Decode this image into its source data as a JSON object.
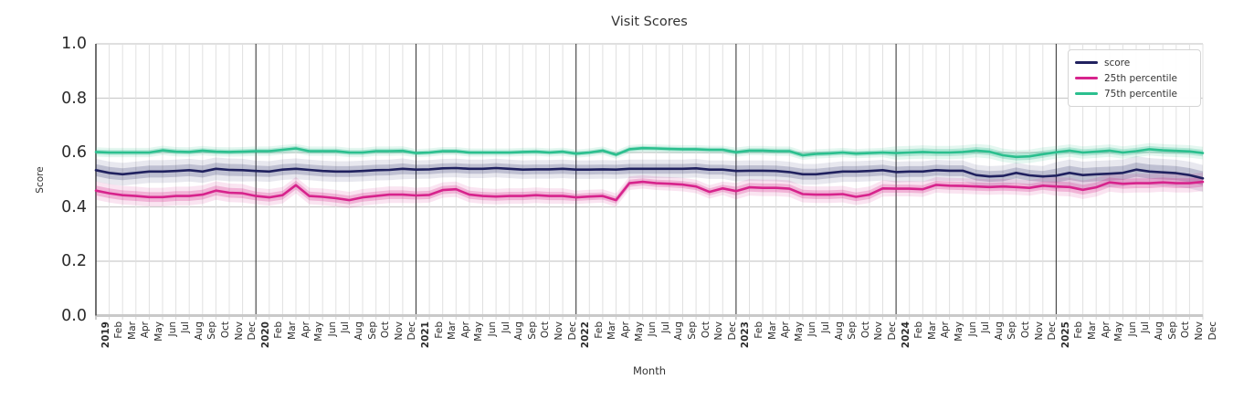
{
  "title": "Visit Scores",
  "xlabel": "Month",
  "ylabel": "Score",
  "yticks": [
    "0.0",
    "0.2",
    "0.4",
    "0.6",
    "0.8",
    "1.0"
  ],
  "colors": {
    "score_line": "#20215f",
    "p25_line": "#d7238c",
    "p75_line": "#2bbf8e",
    "grid_minor": "#e0e0e0",
    "grid_major_year": "#3c3c3c",
    "grid_horizontal": "#cccccc",
    "bottom_spine": "#c9c9c9",
    "left_spine": "#3c3c3c",
    "text": "#2b2b2b"
  },
  "legend": {
    "items": [
      {
        "label": "score",
        "color": "#20215f"
      },
      {
        "label": "25th percentile",
        "color": "#d7238c"
      },
      {
        "label": "75th percentile",
        "color": "#2bbf8e"
      }
    ]
  },
  "chart_data": {
    "type": "line",
    "title": "Visit Scores",
    "xlabel": "Month",
    "ylabel": "Score",
    "ylim": [
      0,
      1
    ],
    "grid": "both",
    "legend_position": "upper right",
    "categories": [
      "2019",
      "Feb",
      "Mar",
      "Apr",
      "May",
      "Jun",
      "Jul",
      "Aug",
      "Sep",
      "Oct",
      "Nov",
      "Dec",
      "2020",
      "Feb",
      "Mar",
      "Apr",
      "May",
      "Jun",
      "Jul",
      "Aug",
      "Sep",
      "Oct",
      "Nov",
      "Dec",
      "2021",
      "Feb",
      "Mar",
      "Apr",
      "May",
      "Jun",
      "Jul",
      "Aug",
      "Sep",
      "Oct",
      "Nov",
      "Dec",
      "2022",
      "Feb",
      "Mar",
      "Apr",
      "May",
      "Jun",
      "Jul",
      "Aug",
      "Sep",
      "Oct",
      "Nov",
      "Dec",
      "2023",
      "Feb",
      "Mar",
      "Apr",
      "May",
      "Jun",
      "Jul",
      "Aug",
      "Sep",
      "Oct",
      "Nov",
      "Dec",
      "2024",
      "Feb",
      "Mar",
      "Apr",
      "May",
      "Jun",
      "Jul",
      "Aug",
      "Sep",
      "Oct",
      "Nov",
      "Dec",
      "2025",
      "Feb",
      "Mar",
      "Apr",
      "May",
      "Jun",
      "Jul",
      "Aug",
      "Sep",
      "Oct",
      "Nov",
      "Dec"
    ],
    "series": [
      {
        "name": "score",
        "color": "#20215f",
        "band_alpha_inner": 0.2,
        "band_alpha_outer": 0.1,
        "band_halfwidth_by_year": [
          0.022,
          0.02,
          0.018,
          0.018,
          0.02,
          0.02,
          0.026
        ],
        "values": [
          0.535,
          0.525,
          0.52,
          0.525,
          0.53,
          0.53,
          0.532,
          0.535,
          0.53,
          0.54,
          0.536,
          0.535,
          0.532,
          0.53,
          0.537,
          0.54,
          0.536,
          0.532,
          0.53,
          0.53,
          0.532,
          0.535,
          0.536,
          0.54,
          0.537,
          0.538,
          0.542,
          0.543,
          0.54,
          0.54,
          0.543,
          0.54,
          0.537,
          0.538,
          0.538,
          0.54,
          0.537,
          0.537,
          0.538,
          0.537,
          0.54,
          0.54,
          0.54,
          0.54,
          0.54,
          0.542,
          0.537,
          0.537,
          0.532,
          0.533,
          0.533,
          0.532,
          0.528,
          0.52,
          0.52,
          0.525,
          0.53,
          0.53,
          0.532,
          0.535,
          0.528,
          0.53,
          0.53,
          0.535,
          0.533,
          0.533,
          0.517,
          0.512,
          0.514,
          0.525,
          0.516,
          0.512,
          0.515,
          0.525,
          0.517,
          0.52,
          0.522,
          0.525,
          0.537,
          0.53,
          0.527,
          0.524,
          0.517,
          0.505
        ]
      },
      {
        "name": "25th percentile",
        "color": "#d7238c",
        "band_alpha_inner": 0.25,
        "band_alpha_outer": 0.12,
        "band_halfwidth_by_year": [
          0.018,
          0.016,
          0.015,
          0.013,
          0.016,
          0.015,
          0.018
        ],
        "values": [
          0.46,
          0.45,
          0.443,
          0.44,
          0.436,
          0.436,
          0.44,
          0.44,
          0.445,
          0.46,
          0.452,
          0.45,
          0.44,
          0.435,
          0.443,
          0.48,
          0.44,
          0.437,
          0.432,
          0.425,
          0.435,
          0.44,
          0.445,
          0.445,
          0.442,
          0.444,
          0.462,
          0.465,
          0.445,
          0.44,
          0.438,
          0.44,
          0.44,
          0.443,
          0.44,
          0.44,
          0.435,
          0.438,
          0.44,
          0.425,
          0.487,
          0.492,
          0.487,
          0.485,
          0.482,
          0.475,
          0.455,
          0.468,
          0.458,
          0.472,
          0.47,
          0.47,
          0.467,
          0.447,
          0.445,
          0.445,
          0.447,
          0.437,
          0.445,
          0.468,
          0.467,
          0.467,
          0.465,
          0.481,
          0.478,
          0.477,
          0.475,
          0.473,
          0.475,
          0.473,
          0.47,
          0.478,
          0.475,
          0.473,
          0.463,
          0.472,
          0.49,
          0.485,
          0.487,
          0.487,
          0.49,
          0.487,
          0.487,
          0.492
        ]
      },
      {
        "name": "75th percentile",
        "color": "#2bbf8e",
        "band_alpha_inner": 0.28,
        "band_alpha_outer": 0.13,
        "band_halfwidth_by_year": [
          0.009,
          0.009,
          0.008,
          0.008,
          0.009,
          0.013,
          0.012
        ],
        "values": [
          0.602,
          0.6,
          0.6,
          0.6,
          0.6,
          0.608,
          0.603,
          0.602,
          0.607,
          0.603,
          0.602,
          0.603,
          0.605,
          0.605,
          0.61,
          0.615,
          0.605,
          0.605,
          0.605,
          0.6,
          0.6,
          0.605,
          0.605,
          0.606,
          0.598,
          0.6,
          0.605,
          0.605,
          0.6,
          0.6,
          0.6,
          0.6,
          0.602,
          0.603,
          0.6,
          0.603,
          0.596,
          0.6,
          0.607,
          0.592,
          0.612,
          0.616,
          0.615,
          0.613,
          0.612,
          0.612,
          0.61,
          0.61,
          0.601,
          0.607,
          0.607,
          0.605,
          0.605,
          0.59,
          0.595,
          0.597,
          0.6,
          0.596,
          0.598,
          0.6,
          0.598,
          0.6,
          0.602,
          0.6,
          0.6,
          0.602,
          0.607,
          0.603,
          0.59,
          0.584,
          0.586,
          0.594,
          0.601,
          0.607,
          0.6,
          0.603,
          0.607,
          0.6,
          0.605,
          0.612,
          0.608,
          0.606,
          0.604,
          0.598
        ]
      }
    ]
  }
}
